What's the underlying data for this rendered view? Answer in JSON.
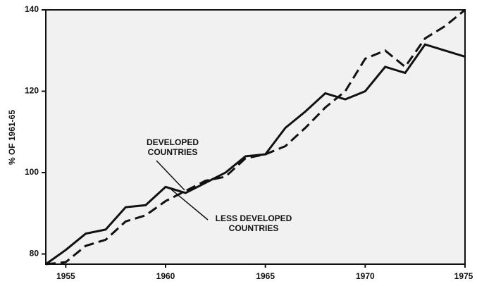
{
  "chart_data": {
    "type": "line",
    "ylabel": "% OF 1961-65",
    "x": [
      1954,
      1955,
      1956,
      1957,
      1958,
      1959,
      1960,
      1961,
      1962,
      1963,
      1964,
      1965,
      1966,
      1967,
      1968,
      1969,
      1970,
      1971,
      1972,
      1973,
      1974,
      1975
    ],
    "series": [
      {
        "name": "DEVELOPED COUNTRIES",
        "color": "#111111",
        "dash": false,
        "values": [
          77.5,
          81,
          85,
          86,
          91.5,
          92,
          96.5,
          95,
          97.5,
          100,
          104,
          104.5,
          111,
          115,
          119.5,
          118,
          120,
          126,
          124.5,
          131.5,
          130,
          128.5
        ]
      },
      {
        "name": "LESS DEVELOPED COUNTRIES",
        "color": "#111111",
        "dash": true,
        "values": [
          77.5,
          78,
          82,
          83.5,
          88,
          89.5,
          93,
          95.5,
          98,
          99,
          103.5,
          104.5,
          106.5,
          111,
          116,
          120,
          128,
          130,
          126,
          133,
          136,
          140
        ]
      }
    ],
    "annotations": [
      {
        "lines": [
          "DEVELOPED",
          "COUNTRIES"
        ]
      },
      {
        "lines": [
          "LESS DEVELOPED",
          "COUNTRIES"
        ]
      }
    ],
    "xlim": [
      1954,
      1975
    ],
    "xticks": [
      1955,
      1960,
      1965,
      1970,
      1975
    ],
    "ylim": [
      77.5,
      140
    ],
    "yticks": [
      80,
      100,
      120,
      140
    ]
  }
}
